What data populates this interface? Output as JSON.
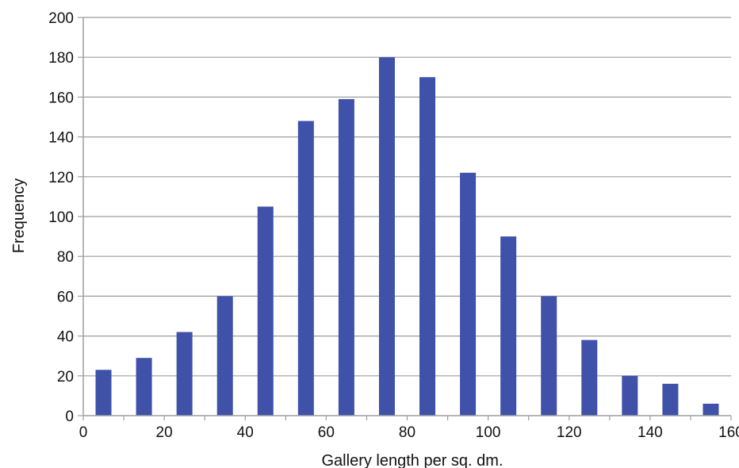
{
  "chart_data": {
    "type": "bar",
    "title": "",
    "xlabel": "Gallery length per sq. dm.",
    "ylabel": "Frequency",
    "x_centers": [
      5,
      15,
      25,
      35,
      45,
      55,
      65,
      75,
      85,
      95,
      105,
      115,
      125,
      135,
      145,
      155
    ],
    "values": [
      23,
      29,
      42,
      60,
      105,
      148,
      159,
      180,
      170,
      122,
      90,
      60,
      38,
      20,
      16,
      6
    ],
    "bin_width": 10,
    "xlim": [
      0,
      160
    ],
    "ylim": [
      0,
      200
    ],
    "x_ticks": [
      0,
      20,
      40,
      60,
      80,
      100,
      120,
      140,
      160
    ],
    "y_ticks": [
      0,
      20,
      40,
      60,
      80,
      100,
      120,
      140,
      160,
      180,
      200
    ],
    "grid": "horizontal",
    "legend": "none",
    "bar_color": "#3F51A8",
    "grid_color": "#9E9E9E"
  }
}
